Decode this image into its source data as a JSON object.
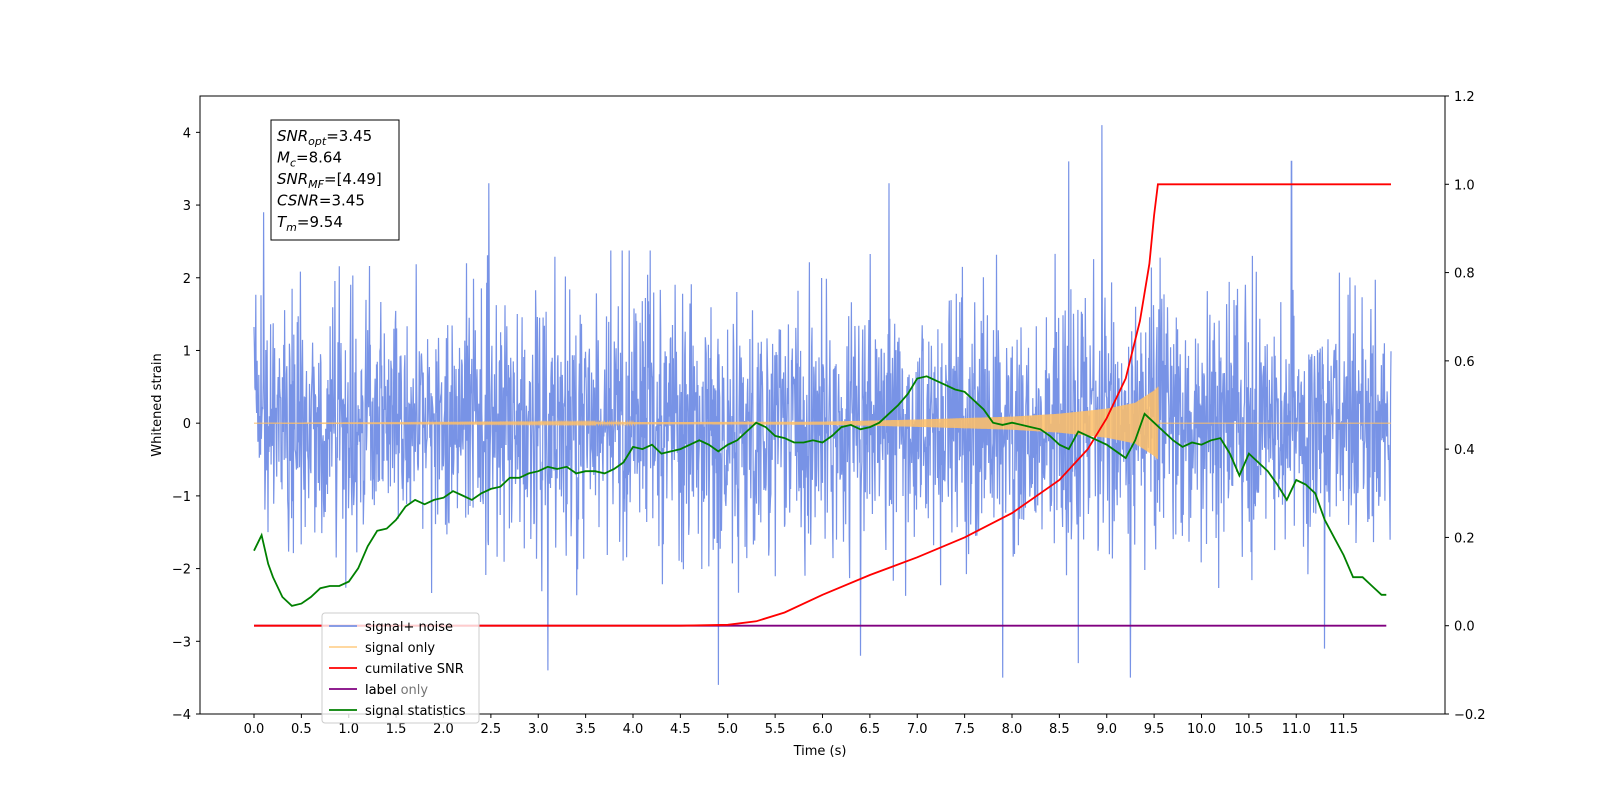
{
  "chart_data": {
    "type": "line",
    "xlabel": "Time (s)",
    "ylabel": "Whitened strain",
    "xlim": [
      -0.57,
      12.57
    ],
    "ylim": [
      -4,
      4.5
    ],
    "y2lim": [
      -0.2,
      1.2
    ],
    "x_ticks": [
      "0.0",
      "0.5",
      "1.0",
      "1.5",
      "2.0",
      "2.5",
      "3.0",
      "3.5",
      "4.0",
      "4.5",
      "5.0",
      "5.5",
      "6.0",
      "6.5",
      "7.0",
      "7.5",
      "8.0",
      "8.5",
      "9.0",
      "9.5",
      "10.0",
      "10.5",
      "11.0",
      "11.5"
    ],
    "y_ticks": [
      "4",
      "3",
      "2",
      "1",
      "0",
      "−1",
      "−2",
      "−3",
      "−4"
    ],
    "y2_ticks": [
      "1.2",
      "1.0",
      "0.8",
      "0.6",
      "0.4",
      "0.2",
      "0.0",
      "−0.2"
    ],
    "grid": false,
    "legend_placement": "lower-left",
    "annotation": [
      {
        "base": "SNR",
        "sub": "opt",
        "value": "=3.45"
      },
      {
        "base": "M",
        "sub": "c",
        "value": "=8.64"
      },
      {
        "base": "SNR",
        "sub": "MF",
        "value": "=[4.49]"
      },
      {
        "base": "CSNR",
        "sub": "",
        "value": "=3.45"
      },
      {
        "base": "T",
        "sub": "m",
        "value": "=9.54"
      }
    ],
    "series": [
      {
        "name": "signal+ noise",
        "axis": "left",
        "color": "#7893e6",
        "style": "dense noise",
        "x_range": [
          0.0,
          12.0
        ],
        "typical_band": [
          -1.7,
          1.9
        ],
        "peaks": [
          [
            0.1,
            2.9
          ],
          [
            2.48,
            3.3
          ],
          [
            6.7,
            3.3
          ],
          [
            8.6,
            3.6
          ],
          [
            8.95,
            4.1
          ],
          [
            10.95,
            3.6
          ],
          [
            3.1,
            -3.4
          ],
          [
            4.9,
            -3.6
          ],
          [
            6.4,
            -3.2
          ],
          [
            7.9,
            -3.5
          ],
          [
            8.7,
            -3.3
          ],
          [
            9.25,
            -3.5
          ],
          [
            11.3,
            -3.1
          ]
        ]
      },
      {
        "name": "signal only",
        "axis": "left",
        "color": "#ffbf66",
        "style": "chirp",
        "x_range": [
          0.0,
          12.0
        ],
        "chirp_end": 9.54,
        "envelope": [
          [
            0.0,
            0.0
          ],
          [
            6.0,
            0.02
          ],
          [
            7.0,
            0.05
          ],
          [
            8.0,
            0.09
          ],
          [
            8.5,
            0.13
          ],
          [
            9.0,
            0.2
          ],
          [
            9.3,
            0.28
          ],
          [
            9.5,
            0.45
          ],
          [
            9.54,
            0.5
          ]
        ]
      },
      {
        "name": "cumilative SNR",
        "axis": "right",
        "color": "#ff0000",
        "points": [
          [
            0.0,
            0.0
          ],
          [
            4.5,
            0.0
          ],
          [
            5.0,
            0.002
          ],
          [
            5.3,
            0.01
          ],
          [
            5.6,
            0.03
          ],
          [
            6.0,
            0.07
          ],
          [
            6.5,
            0.115
          ],
          [
            7.0,
            0.155
          ],
          [
            7.5,
            0.2
          ],
          [
            8.0,
            0.255
          ],
          [
            8.5,
            0.33
          ],
          [
            8.8,
            0.4
          ],
          [
            9.0,
            0.47
          ],
          [
            9.2,
            0.56
          ],
          [
            9.35,
            0.69
          ],
          [
            9.45,
            0.82
          ],
          [
            9.5,
            0.93
          ],
          [
            9.54,
            1.0
          ],
          [
            12.0,
            1.0
          ]
        ]
      },
      {
        "name": "label",
        "axis": "right",
        "color": "#800080",
        "points": [
          [
            0.0,
            0.0
          ],
          [
            11.95,
            0.0
          ]
        ]
      },
      {
        "name": "label only",
        "axis": "right",
        "color": "#800080",
        "hidden_behind_legend": true,
        "points": []
      },
      {
        "name": "signal statistics",
        "axis": "right",
        "color": "#008000",
        "points": [
          [
            0.0,
            0.17
          ],
          [
            0.08,
            0.205
          ],
          [
            0.15,
            0.14
          ],
          [
            0.2,
            0.11
          ],
          [
            0.3,
            0.065
          ],
          [
            0.4,
            0.045
          ],
          [
            0.5,
            0.05
          ],
          [
            0.6,
            0.065
          ],
          [
            0.7,
            0.085
          ],
          [
            0.8,
            0.09
          ],
          [
            0.9,
            0.09
          ],
          [
            1.0,
            0.1
          ],
          [
            1.1,
            0.13
          ],
          [
            1.2,
            0.18
          ],
          [
            1.3,
            0.215
          ],
          [
            1.4,
            0.22
          ],
          [
            1.5,
            0.24
          ],
          [
            1.6,
            0.27
          ],
          [
            1.7,
            0.285
          ],
          [
            1.8,
            0.275
          ],
          [
            1.9,
            0.285
          ],
          [
            2.0,
            0.29
          ],
          [
            2.1,
            0.305
          ],
          [
            2.2,
            0.295
          ],
          [
            2.3,
            0.285
          ],
          [
            2.4,
            0.3
          ],
          [
            2.5,
            0.31
          ],
          [
            2.6,
            0.315
          ],
          [
            2.7,
            0.335
          ],
          [
            2.8,
            0.335
          ],
          [
            2.9,
            0.345
          ],
          [
            3.0,
            0.35
          ],
          [
            3.1,
            0.36
          ],
          [
            3.2,
            0.355
          ],
          [
            3.3,
            0.36
          ],
          [
            3.4,
            0.345
          ],
          [
            3.5,
            0.35
          ],
          [
            3.6,
            0.35
          ],
          [
            3.7,
            0.345
          ],
          [
            3.8,
            0.355
          ],
          [
            3.9,
            0.37
          ],
          [
            4.0,
            0.405
          ],
          [
            4.1,
            0.4
          ],
          [
            4.2,
            0.41
          ],
          [
            4.3,
            0.39
          ],
          [
            4.4,
            0.395
          ],
          [
            4.5,
            0.4
          ],
          [
            4.6,
            0.41
          ],
          [
            4.7,
            0.42
          ],
          [
            4.8,
            0.41
          ],
          [
            4.9,
            0.395
          ],
          [
            5.0,
            0.41
          ],
          [
            5.1,
            0.42
          ],
          [
            5.2,
            0.44
          ],
          [
            5.3,
            0.46
          ],
          [
            5.4,
            0.45
          ],
          [
            5.5,
            0.43
          ],
          [
            5.6,
            0.425
          ],
          [
            5.7,
            0.415
          ],
          [
            5.8,
            0.415
          ],
          [
            5.9,
            0.42
          ],
          [
            6.0,
            0.415
          ],
          [
            6.1,
            0.43
          ],
          [
            6.2,
            0.45
          ],
          [
            6.3,
            0.455
          ],
          [
            6.4,
            0.445
          ],
          [
            6.5,
            0.45
          ],
          [
            6.6,
            0.46
          ],
          [
            6.7,
            0.48
          ],
          [
            6.8,
            0.5
          ],
          [
            6.9,
            0.525
          ],
          [
            7.0,
            0.56
          ],
          [
            7.1,
            0.565
          ],
          [
            7.2,
            0.555
          ],
          [
            7.3,
            0.545
          ],
          [
            7.4,
            0.535
          ],
          [
            7.5,
            0.53
          ],
          [
            7.6,
            0.51
          ],
          [
            7.7,
            0.49
          ],
          [
            7.8,
            0.46
          ],
          [
            7.9,
            0.455
          ],
          [
            8.0,
            0.46
          ],
          [
            8.1,
            0.455
          ],
          [
            8.2,
            0.45
          ],
          [
            8.3,
            0.445
          ],
          [
            8.4,
            0.43
          ],
          [
            8.5,
            0.41
          ],
          [
            8.6,
            0.4
          ],
          [
            8.7,
            0.44
          ],
          [
            8.8,
            0.43
          ],
          [
            8.9,
            0.42
          ],
          [
            9.0,
            0.41
          ],
          [
            9.1,
            0.395
          ],
          [
            9.2,
            0.38
          ],
          [
            9.3,
            0.42
          ],
          [
            9.4,
            0.48
          ],
          [
            9.5,
            0.46
          ],
          [
            9.6,
            0.44
          ],
          [
            9.7,
            0.42
          ],
          [
            9.8,
            0.405
          ],
          [
            9.9,
            0.415
          ],
          [
            10.0,
            0.41
          ],
          [
            10.1,
            0.42
          ],
          [
            10.2,
            0.425
          ],
          [
            10.3,
            0.39
          ],
          [
            10.4,
            0.34
          ],
          [
            10.5,
            0.39
          ],
          [
            10.6,
            0.37
          ],
          [
            10.7,
            0.35
          ],
          [
            10.8,
            0.32
          ],
          [
            10.9,
            0.285
          ],
          [
            11.0,
            0.33
          ],
          [
            11.1,
            0.32
          ],
          [
            11.2,
            0.3
          ],
          [
            11.3,
            0.24
          ],
          [
            11.4,
            0.2
          ],
          [
            11.5,
            0.16
          ],
          [
            11.6,
            0.11
          ],
          [
            11.7,
            0.11
          ],
          [
            11.8,
            0.09
          ],
          [
            11.9,
            0.07
          ],
          [
            11.95,
            0.07
          ]
        ]
      }
    ]
  }
}
